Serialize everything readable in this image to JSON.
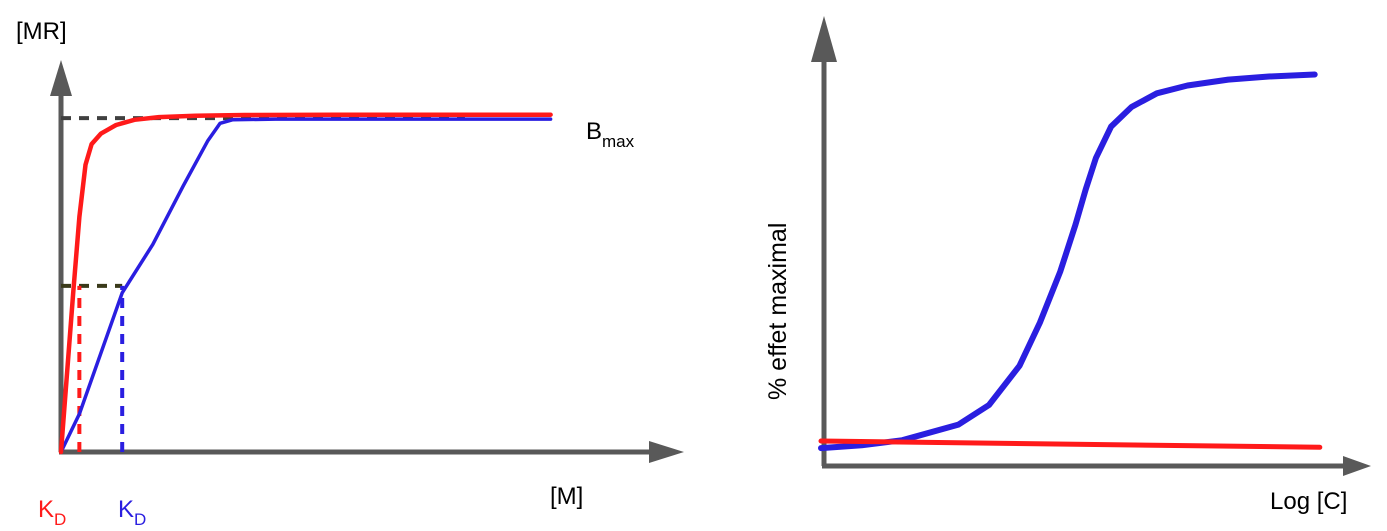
{
  "colors": {
    "axis": "#595959",
    "red": "#ff1a1a",
    "blue": "#2a1ee0",
    "guide": "#404040",
    "guide_dark": "#3a3a1a"
  },
  "chart_data": [
    {
      "type": "line",
      "title": "",
      "ylabel": "[MR]",
      "xlabel": "[M]",
      "x_tick_labels": [
        {
          "main": "K",
          "sub": "D",
          "color": "#ff1a1a"
        },
        {
          "main": "K",
          "sub": "D",
          "color": "#2a1ee0"
        }
      ],
      "annotations": [
        {
          "main": "B",
          "sub": "max"
        }
      ],
      "xlim": [
        0,
        10
      ],
      "ylim": [
        0,
        10
      ],
      "grid": false,
      "series": [
        {
          "color": "#ff1a1a",
          "x": [
            0,
            0.1,
            0.2,
            0.3,
            0.4,
            0.5,
            0.65,
            0.9,
            1.2,
            1.6,
            2.2,
            3.0,
            4.5,
            6.5,
            8.0
          ],
          "y": [
            0,
            2.3,
            4.6,
            6.8,
            8.3,
            8.9,
            9.2,
            9.45,
            9.6,
            9.68,
            9.72,
            9.74,
            9.75,
            9.75,
            9.75
          ]
        },
        {
          "color": "#2a1ee0",
          "x": [
            0,
            0.3,
            1.0,
            1.5,
            2.0,
            2.4,
            2.6,
            2.8,
            3.5,
            5.0,
            6.5,
            8.0
          ],
          "y": [
            0,
            1.1,
            4.6,
            6.0,
            7.7,
            9.0,
            9.5,
            9.6,
            9.62,
            9.62,
            9.62,
            9.62
          ]
        }
      ],
      "reference_lines": [
        {
          "orientation": "horizontal",
          "y": 9.65,
          "x_range": [
            0,
            6.6
          ],
          "color": "#404040",
          "dashed": true
        },
        {
          "orientation": "horizontal",
          "y": 4.8,
          "x_range": [
            0,
            1.0
          ],
          "color": "#3a3a1a",
          "dashed": true
        },
        {
          "orientation": "vertical",
          "x": 0.3,
          "y_range": [
            0,
            4.8
          ],
          "color": "#ff1a1a",
          "dashed": true
        },
        {
          "orientation": "vertical",
          "x": 1.0,
          "y_range": [
            0,
            4.8
          ],
          "color": "#2a1ee0",
          "dashed": true
        }
      ]
    },
    {
      "type": "line",
      "title": "",
      "ylabel": "% effet maximal",
      "xlabel": "Log [C]",
      "xlim": [
        0,
        10
      ],
      "ylim": [
        0,
        100
      ],
      "grid": false,
      "series": [
        {
          "color": "#2a1ee0",
          "x": [
            0,
            0.8,
            1.6,
            2.7,
            3.3,
            3.9,
            4.3,
            4.7,
            5.0,
            5.2,
            5.4,
            5.7,
            6.1,
            6.6,
            7.2,
            8.0,
            8.8,
            9.7
          ],
          "y": [
            1,
            1.7,
            3,
            7,
            12,
            22,
            33,
            46,
            58,
            67,
            75,
            83,
            88,
            91.5,
            93.5,
            95,
            95.8,
            96.3
          ]
        },
        {
          "color": "#ff1a1a",
          "x": [
            0,
            9.8
          ],
          "y": [
            2.8,
            1.2
          ]
        }
      ]
    }
  ]
}
